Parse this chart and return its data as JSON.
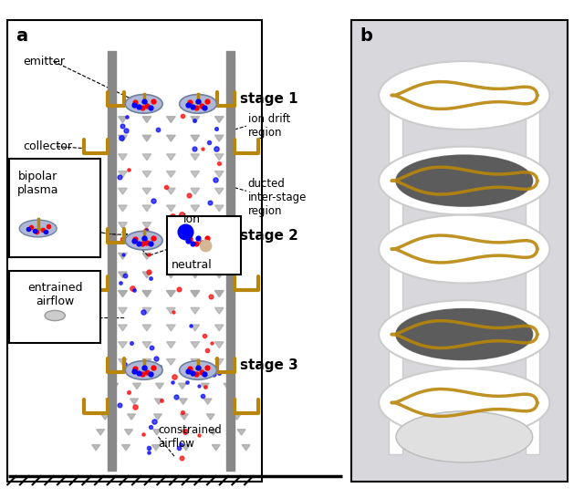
{
  "fig_width": 6.4,
  "fig_height": 5.46,
  "panel_a_label": "a",
  "panel_b_label": "b",
  "stage_labels": [
    "stage 1",
    "stage 2",
    "stage 3"
  ],
  "right_labels": [
    "ion drift\nregion",
    "ducted\ninter-stage\nregion",
    "constrained\nairflow"
  ],
  "left_labels": [
    "emitter",
    "collector"
  ],
  "box_labels": [
    "bipolar\nplasma",
    "entrained\nairflow",
    "ion\nneutral"
  ],
  "duct_color": "#808080",
  "gold_color": "#B8860B",
  "bg_color": "#ffffff"
}
